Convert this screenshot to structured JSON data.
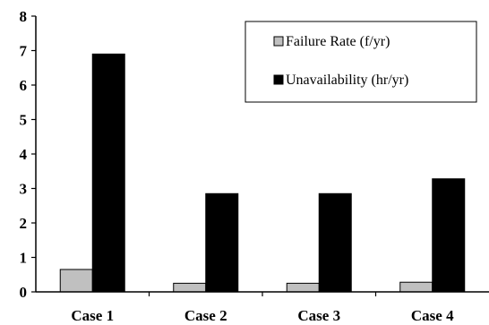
{
  "chart_data": {
    "type": "bar",
    "categories": [
      "Case 1",
      "Case 2",
      "Case 3",
      "Case 4"
    ],
    "series": [
      {
        "name": "Failure Rate (f/yr)",
        "values": [
          0.65,
          0.25,
          0.25,
          0.28
        ],
        "color": "#c0c0c0"
      },
      {
        "name": "Unavailability (hr/yr)",
        "values": [
          6.9,
          2.85,
          2.85,
          3.28
        ],
        "color": "#000000"
      }
    ],
    "ylim": [
      0,
      8
    ],
    "yticks": [
      0,
      1,
      2,
      3,
      4,
      5,
      6,
      7,
      8
    ],
    "grid": false,
    "legend_position": "top-right",
    "title": "",
    "xlabel": "",
    "ylabel": ""
  }
}
